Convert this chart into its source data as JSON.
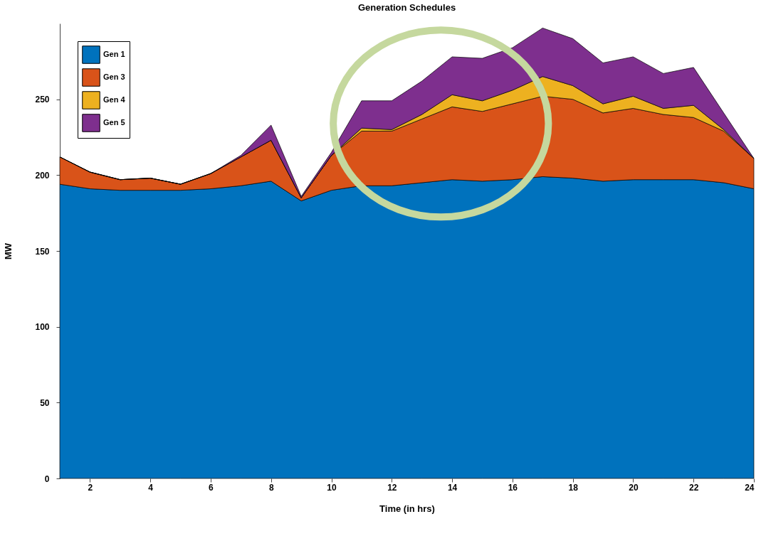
{
  "chart_data": {
    "type": "area",
    "stacked": true,
    "title": "Generation Schedules",
    "xlabel": "Time (in hrs)",
    "ylabel": "MW",
    "x": [
      1,
      2,
      3,
      4,
      5,
      6,
      7,
      8,
      9,
      10,
      11,
      12,
      13,
      14,
      15,
      16,
      17,
      18,
      19,
      20,
      21,
      22,
      23,
      24
    ],
    "xlim": [
      1,
      24
    ],
    "xticks": [
      2,
      4,
      6,
      8,
      10,
      12,
      14,
      16,
      18,
      20,
      22,
      24
    ],
    "ylim": [
      0,
      300
    ],
    "yticks": [
      0,
      50,
      100,
      150,
      200,
      250
    ],
    "grid": false,
    "legend": "top left",
    "series": [
      {
        "name": "Gen 1",
        "color": "#0072bd",
        "values": [
          194,
          191,
          190,
          190,
          190,
          191,
          193,
          196,
          183,
          190,
          193,
          193,
          195,
          197,
          196,
          197,
          199,
          198,
          196,
          197,
          197,
          197,
          195,
          191
        ]
      },
      {
        "name": "Gen 3",
        "color": "#d95319",
        "values": [
          18,
          11,
          7,
          8,
          4,
          10,
          19,
          27,
          2,
          23,
          36,
          36,
          42,
          48,
          46,
          50,
          53,
          52,
          45,
          47,
          43,
          41,
          34,
          20
        ]
      },
      {
        "name": "Gen 4",
        "color": "#edb120",
        "values": [
          0,
          0,
          0,
          0,
          0,
          0,
          0,
          0,
          0,
          0,
          2,
          1,
          3,
          8,
          7,
          9,
          13,
          9,
          6,
          8,
          4,
          8,
          1,
          0
        ]
      },
      {
        "name": "Gen 5",
        "color": "#7e2f8e",
        "values": [
          0,
          0,
          0,
          0,
          0,
          0,
          1,
          10,
          1,
          2,
          18,
          19,
          22,
          25,
          28,
          28,
          32,
          31,
          27,
          26,
          23,
          25,
          11,
          0
        ]
      }
    ]
  }
}
